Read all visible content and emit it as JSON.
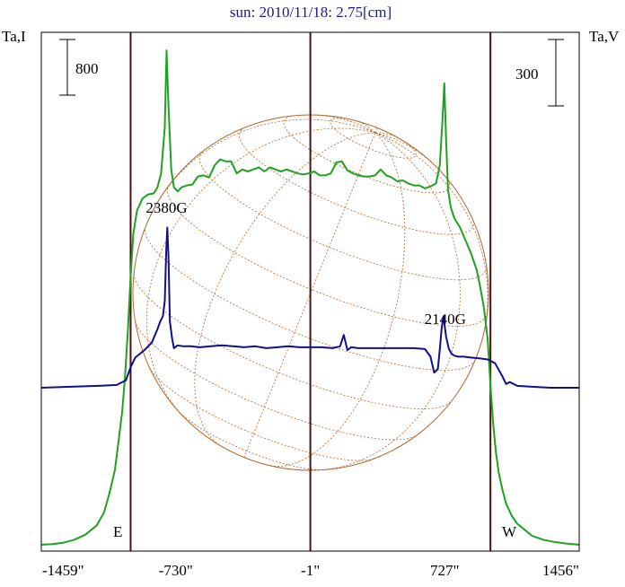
{
  "chart_data": {
    "type": "line",
    "title": "sun: 2010/11/18: 2.75[cm]",
    "y_left_label": "Ta,I",
    "y_right_label": "Ta,V",
    "x_ticks": [
      "-1459\"",
      "-730\"",
      "-1\"",
      "727\"",
      "1456\""
    ],
    "x_tick_values": [
      -1459,
      -730,
      -1,
      727,
      1456
    ],
    "xlim": [
      -1459,
      1456
    ],
    "scale_bar_left": "800",
    "scale_bar_right": "300",
    "limb_labels": {
      "east": "E",
      "west": "W"
    },
    "limb_positions_arcsec": [
      -975,
      975
    ],
    "center_line_arcsec": -1,
    "annotations": [
      {
        "text": "2380G",
        "x": -780
      },
      {
        "text": "2140G",
        "x": 730
      }
    ],
    "colors": {
      "intensity": "#1fa21f",
      "polarization": "#10108c",
      "disk": "#b5672b",
      "vlines": "#4a1414",
      "frame": "#000000",
      "title": "#1a1a8c"
    },
    "series": [
      {
        "name": "Ta,I",
        "color": "#1fa21f",
        "x": [
          -1459,
          -1400,
          -1340,
          -1280,
          -1220,
          -1160,
          -1120,
          -1090,
          -1060,
          -1040,
          -1020,
          -1005,
          -990,
          -975,
          -960,
          -940,
          -910,
          -880,
          -850,
          -830,
          -810,
          -790,
          -780,
          -770,
          -755,
          -740,
          -720,
          -700,
          -670,
          -640,
          -610,
          -580,
          -550,
          -520,
          -490,
          -460,
          -430,
          -400,
          -370,
          -340,
          -310,
          -280,
          -250,
          -220,
          -190,
          -160,
          -130,
          -100,
          -70,
          -40,
          -10,
          20,
          50,
          80,
          110,
          140,
          170,
          200,
          230,
          260,
          290,
          320,
          350,
          380,
          410,
          440,
          470,
          500,
          530,
          560,
          590,
          620,
          650,
          680,
          700,
          715,
          725,
          735,
          745,
          760,
          780,
          810,
          840,
          870,
          900,
          920,
          940,
          960,
          975,
          990,
          1005,
          1020,
          1040,
          1060,
          1090,
          1120,
          1160,
          1200,
          1260,
          1320,
          1380,
          1456
        ],
        "y": [
          10,
          15,
          30,
          60,
          110,
          200,
          330,
          520,
          760,
          1050,
          1350,
          1700,
          2150,
          2700,
          3120,
          3350,
          3470,
          3510,
          3520,
          3580,
          3720,
          4180,
          4950,
          4400,
          3760,
          3580,
          3540,
          3580,
          3600,
          3610,
          3690,
          3700,
          3680,
          3800,
          3860,
          3840,
          3840,
          3720,
          3760,
          3740,
          3760,
          3780,
          3740,
          3780,
          3760,
          3740,
          3760,
          3740,
          3720,
          3710,
          3720,
          3740,
          3700,
          3700,
          3720,
          3830,
          3840,
          3750,
          3720,
          3700,
          3690,
          3690,
          3700,
          3760,
          3700,
          3680,
          3640,
          3650,
          3620,
          3600,
          3600,
          3570,
          3590,
          3620,
          3800,
          4250,
          4620,
          4050,
          3560,
          3380,
          3270,
          3180,
          3050,
          2920,
          2760,
          2580,
          2370,
          2060,
          1600,
          1220,
          930,
          730,
          560,
          420,
          300,
          220,
          160,
          100,
          60,
          38,
          22,
          10
        ]
      },
      {
        "name": "Ta,V",
        "color": "#10108c",
        "x": [
          -1459,
          -1300,
          -1150,
          -1050,
          -1000,
          -975,
          -950,
          -900,
          -860,
          -830,
          -815,
          -800,
          -790,
          -782,
          -776,
          -770,
          -762,
          -750,
          -740,
          -720,
          -690,
          -650,
          -600,
          -540,
          -480,
          -420,
          -360,
          -300,
          -240,
          -180,
          -120,
          -60,
          0,
          60,
          120,
          160,
          180,
          200,
          220,
          260,
          320,
          380,
          440,
          500,
          560,
          620,
          650,
          670,
          690,
          700,
          710,
          720,
          735,
          750,
          765,
          780,
          800,
          830,
          870,
          920,
          960,
          1000,
          1040,
          1060,
          1080,
          1120,
          1200,
          1300,
          1456
        ],
        "y": [
          0,
          1,
          2,
          3,
          8,
          22,
          32,
          40,
          48,
          62,
          70,
          76,
          92,
          145,
          170,
          140,
          70,
          52,
          42,
          45,
          44,
          44,
          43,
          44,
          45,
          44,
          43,
          44,
          42,
          43,
          44,
          43,
          43,
          43,
          42,
          44,
          56,
          40,
          43,
          42,
          42,
          42,
          42,
          42,
          42,
          41,
          33,
          16,
          20,
          40,
          62,
          76,
          54,
          41,
          36,
          34,
          33,
          33,
          32,
          31,
          30,
          26,
          12,
          4,
          6,
          2,
          1,
          0,
          0
        ]
      }
    ]
  }
}
